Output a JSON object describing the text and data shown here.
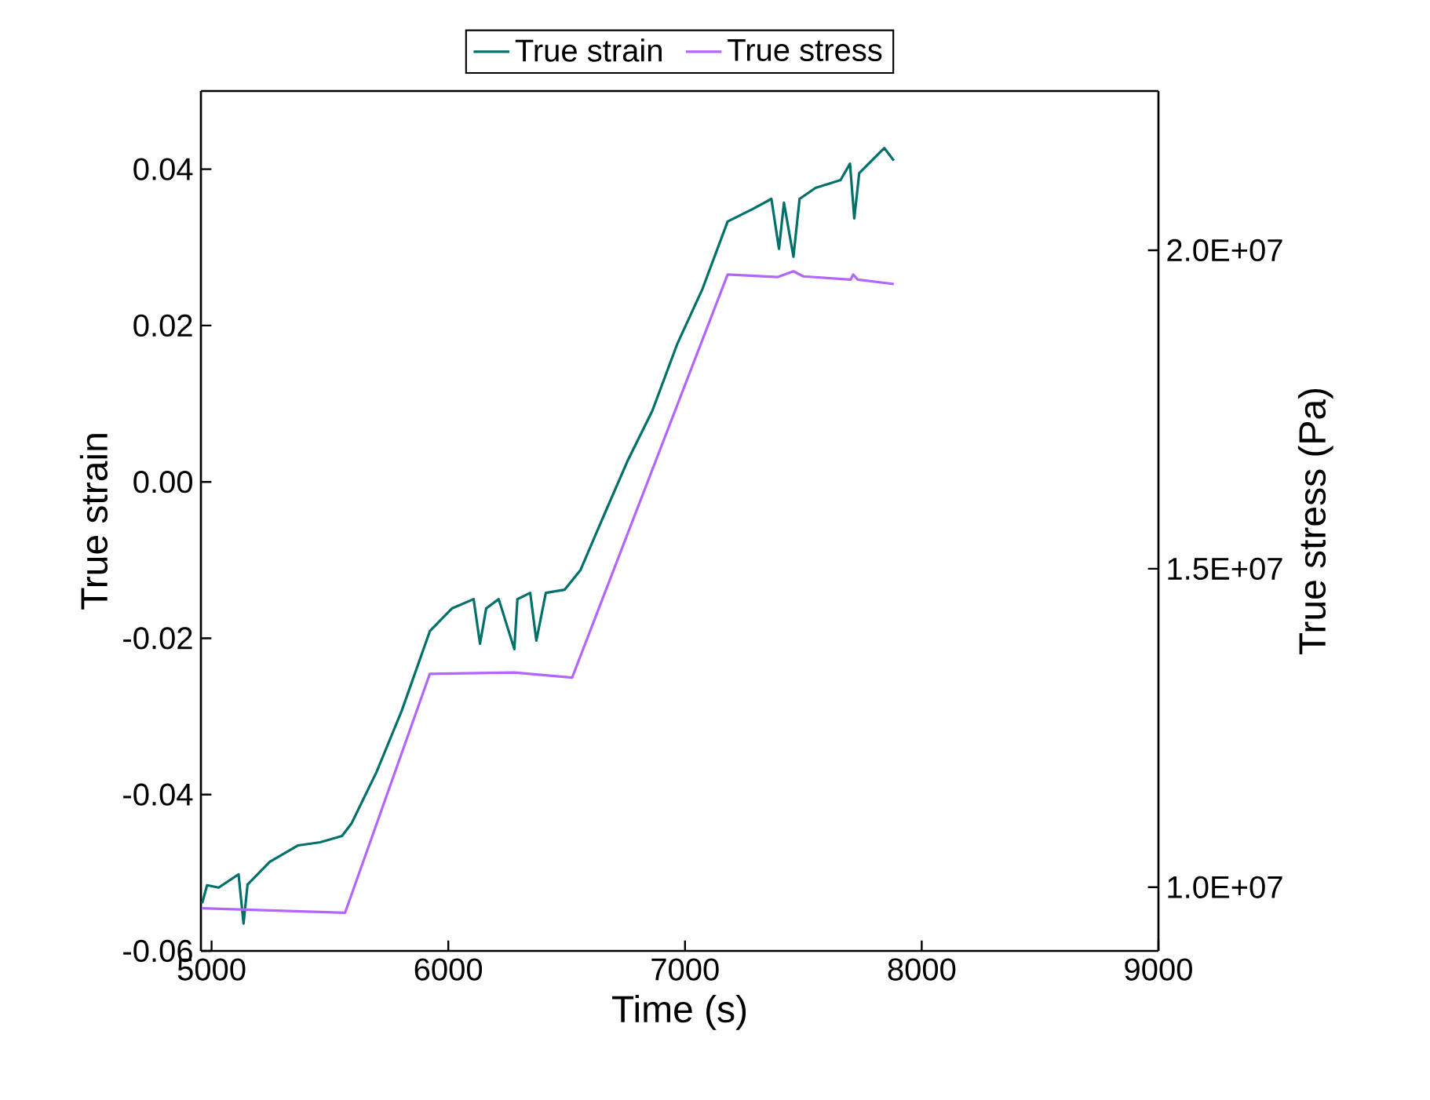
{
  "chart_data": {
    "type": "line",
    "xlabel": "Time (s)",
    "ylabel": "True strain",
    "y2label": "True stress (Pa)",
    "xlim": [
      4955,
      9000
    ],
    "xticks": [
      5000,
      6000,
      7000,
      8000,
      9000
    ],
    "ylim": [
      -0.06,
      0.05
    ],
    "yticks": [
      {
        "value": 0.04,
        "label": "0.04"
      },
      {
        "value": 0.02,
        "label": "0.02"
      },
      {
        "value": 0.0,
        "label": "0.00"
      },
      {
        "value": -0.02,
        "label": "-0.02"
      },
      {
        "value": -0.04,
        "label": "-0.04"
      },
      {
        "value": -0.06,
        "label": "-0.06"
      }
    ],
    "y2lim": [
      9000000,
      22500000
    ],
    "y2ticks": [
      {
        "value": 10000000,
        "label": "1.0E+07"
      },
      {
        "value": 15000000,
        "label": "1.5E+07"
      },
      {
        "value": 20000000,
        "label": "2.0E+07"
      }
    ],
    "grid": false,
    "legend": "top",
    "marker": "none",
    "line_style": "solid",
    "series": [
      {
        "name": "True strain",
        "color": "#00706a",
        "x": [
          4960,
          4981,
          5030,
          5114,
          5135,
          5152,
          5246,
          5366,
          5459,
          5551,
          5591,
          5697,
          5803,
          5922,
          6015,
          6107,
          6134,
          6160,
          6213,
          6279,
          6292,
          6346,
          6372,
          6412,
          6491,
          6558,
          6650,
          6756,
          6862,
          6968,
          7074,
          7180,
          7286,
          7365,
          7397,
          7418,
          7458,
          7484,
          7551,
          7657,
          7697,
          7715,
          7736,
          7842,
          7882
        ],
        "values": [
          -0.0539,
          -0.0516,
          -0.0519,
          -0.0502,
          -0.0565,
          -0.0515,
          -0.0486,
          -0.0465,
          -0.0461,
          -0.0453,
          -0.0437,
          -0.0371,
          -0.0293,
          -0.0191,
          -0.0162,
          -0.015,
          -0.0207,
          -0.0162,
          -0.015,
          -0.0214,
          -0.015,
          -0.0142,
          -0.0203,
          -0.0142,
          -0.0138,
          -0.0113,
          -0.0048,
          0.0026,
          0.0091,
          0.0177,
          0.0247,
          0.0333,
          0.0349,
          0.0362,
          0.0298,
          0.0357,
          0.0288,
          0.0362,
          0.0376,
          0.0386,
          0.0407,
          0.0337,
          0.0395,
          0.0427,
          0.0411
        ]
      },
      {
        "name": "True stress",
        "color": "#b266ff",
        "axis": "y2",
        "x": [
          4960,
          5564,
          5922,
          6279,
          6523,
          7180,
          7392,
          7458,
          7500,
          7700,
          7710,
          7730,
          7882
        ],
        "values": [
          9670000,
          9600000,
          13350000,
          13370000,
          13290000,
          19620000,
          19580000,
          19670000,
          19590000,
          19540000,
          19620000,
          19540000,
          19470000
        ]
      }
    ]
  }
}
